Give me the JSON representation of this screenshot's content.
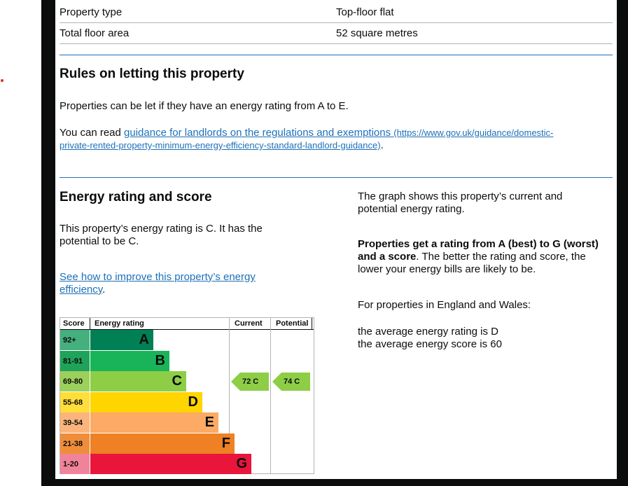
{
  "summary": [
    {
      "label": "Property type",
      "value": "Top-floor flat"
    },
    {
      "label": "Total floor area",
      "value": "52 square metres"
    }
  ],
  "letting": {
    "heading": "Rules on letting this property",
    "text": "Properties can be let if they have an energy rating from A to E.",
    "read_prefix": "You can read ",
    "link_text": "guidance for landlords on the regulations and exemptions",
    "link_url_line1": "(https://www.gov.uk/guidance/domestic-",
    "link_url_line2": "private-rented-property-minimum-energy-efficiency-standard-landlord-guidance)",
    "link_suffix": "."
  },
  "rating": {
    "heading": "Energy rating and score",
    "text_line1": "This property’s energy rating is C. It has the",
    "text_line2": "potential to be C.",
    "improve_line1": "See how to improve this property’s energy",
    "improve_line2": "efficiency",
    "improve_suffix": ".",
    "right_line1": "The graph shows this property’s current and",
    "right_line2": "potential energy rating",
    "right_line2_suffix": ".",
    "bold_line1": "Properties get a rating from A (best) to G (worst)",
    "bold_line2": "and a score",
    "bold_line2_suffix": ". The better the rating and score, the",
    "after_line": "lower your energy bills are likely to be.",
    "england_wales": "For properties in England and Wales:",
    "avg_rating": "the average energy rating is D",
    "avg_score": "the average energy score is 60"
  },
  "chart_data": {
    "type": "table",
    "headers": {
      "score": "Score",
      "rating": "Energy rating",
      "current": "Current",
      "potential": "Potential"
    },
    "bands": [
      {
        "score": "92+",
        "letter": "A",
        "color": "#008054",
        "score_color": "#45b07e",
        "width": 90
      },
      {
        "score": "81-91",
        "letter": "B",
        "color": "#19b459",
        "score_color": "#1fa35a",
        "width": 113
      },
      {
        "score": "69-80",
        "letter": "C",
        "color": "#8dce46",
        "score_color": "#9ccf5b",
        "width": 137
      },
      {
        "score": "55-68",
        "letter": "D",
        "color": "#ffd500",
        "score_color": "#ffde3a",
        "width": 160
      },
      {
        "score": "39-54",
        "letter": "E",
        "color": "#fcaa65",
        "score_color": "#fbb57c",
        "width": 183
      },
      {
        "score": "21-38",
        "letter": "F",
        "color": "#ef8023",
        "score_color": "#f08d3a",
        "width": 206
      },
      {
        "score": "1-20",
        "letter": "G",
        "color": "#e9153b",
        "score_color": "#f0839a",
        "width": 230
      }
    ],
    "current": {
      "score": 72,
      "letter": "C",
      "label": "72 C",
      "color": "#8dce46"
    },
    "potential": {
      "score": 74,
      "letter": "C",
      "label": "74 C",
      "color": "#8dce46"
    }
  }
}
